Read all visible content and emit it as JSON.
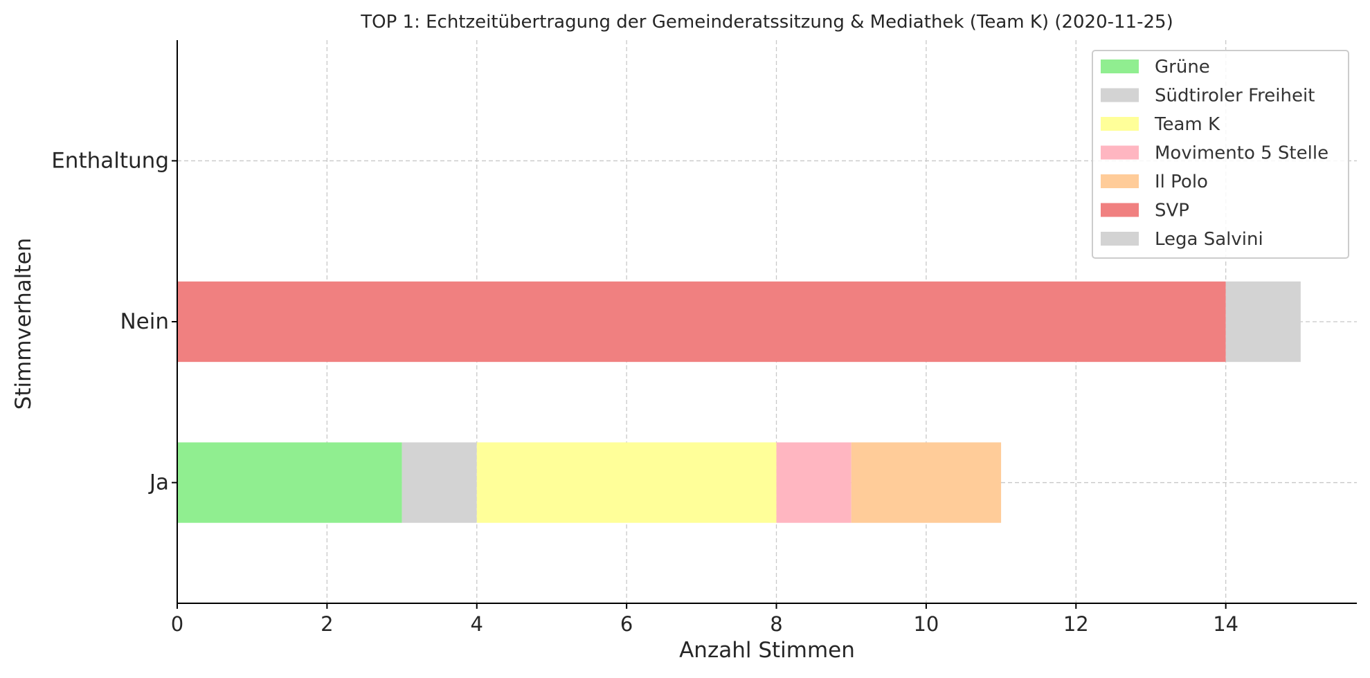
{
  "chart_data": {
    "type": "bar",
    "orientation": "horizontal",
    "stacked": true,
    "title": "TOP 1: Echtzeitübertragung der Gemeinderatssitzung & Mediathek (Team K) (2020-11-25)",
    "xlabel": "Anzahl Stimmen",
    "ylabel": "Stimmverhalten",
    "categories": [
      "Ja",
      "Nein",
      "Enthaltung"
    ],
    "xlim": [
      0,
      15.75
    ],
    "x_ticks": [
      0,
      2,
      4,
      6,
      8,
      10,
      12,
      14
    ],
    "grid": true,
    "legend_position": "top-right",
    "series": [
      {
        "name": "Grüne",
        "color": "#90ee90",
        "values": [
          3,
          0,
          0
        ]
      },
      {
        "name": "Südtiroler Freiheit",
        "color": "#d3d3d3",
        "values": [
          1,
          0,
          0
        ]
      },
      {
        "name": "Team K",
        "color": "#ffff99",
        "values": [
          4,
          0,
          0
        ]
      },
      {
        "name": "Movimento 5 Stelle",
        "color": "#ffb6c1",
        "values": [
          1,
          0,
          0
        ]
      },
      {
        "name": "Il Polo",
        "color": "#ffcc99",
        "values": [
          2,
          0,
          0
        ]
      },
      {
        "name": "SVP",
        "color": "#f08080",
        "values": [
          0,
          14,
          0
        ]
      },
      {
        "name": "Lega Salvini",
        "color": "#d3d3d3",
        "values": [
          0,
          1,
          0
        ]
      }
    ]
  }
}
